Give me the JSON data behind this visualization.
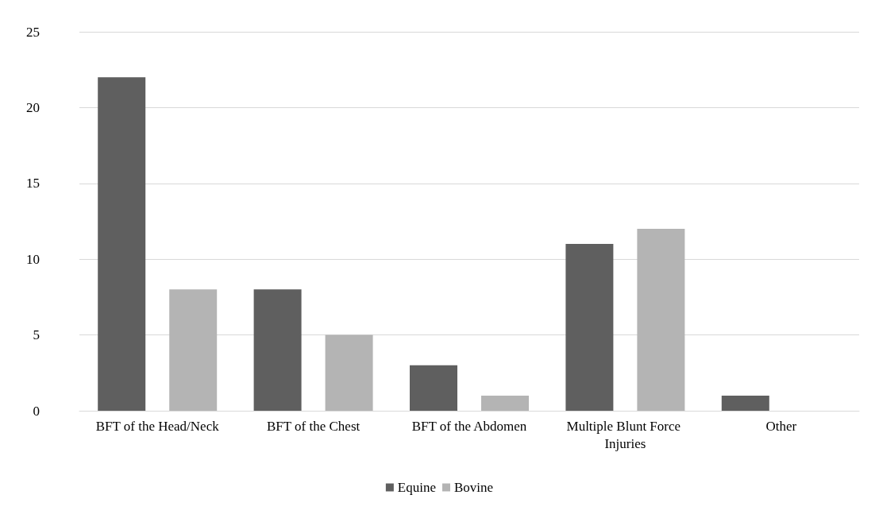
{
  "chart_data": {
    "type": "bar",
    "categories": [
      "BFT of the Head/Neck",
      "BFT of the Chest",
      "BFT of the Abdomen",
      "Multiple Blunt Force Injuries",
      "Other"
    ],
    "series": [
      {
        "name": "Equine",
        "color": "#5f5f5f",
        "values": [
          22,
          8,
          3,
          11,
          1
        ]
      },
      {
        "name": "Bovine",
        "color": "#b4b4b4",
        "values": [
          8,
          5,
          1,
          12,
          0
        ]
      }
    ],
    "ylim": [
      0,
      25
    ],
    "yticks": [
      0,
      5,
      10,
      15,
      20,
      25
    ],
    "grid": "y",
    "legend": "bottom"
  }
}
